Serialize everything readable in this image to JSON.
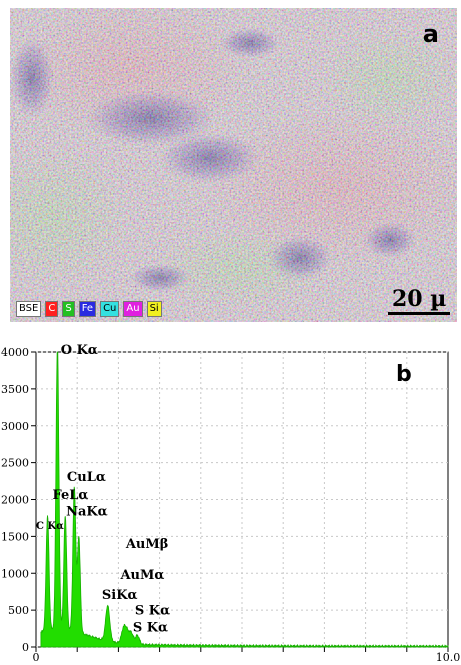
{
  "panel_a": {
    "label": "a",
    "scale_text": "20 µ",
    "legend": [
      {
        "label": "BSE",
        "bg": "#ffffff",
        "fg": "#000000"
      },
      {
        "label": "C",
        "bg": "#ff2020",
        "fg": "#ffffff"
      },
      {
        "label": "S",
        "bg": "#22c022",
        "fg": "#ffffff"
      },
      {
        "label": "Fe",
        "bg": "#2a2ae0",
        "fg": "#ffffff"
      },
      {
        "label": "Cu",
        "bg": "#33e0e0",
        "fg": "#000000"
      },
      {
        "label": "Au",
        "bg": "#e020e0",
        "fg": "#ffffff"
      },
      {
        "label": "Si",
        "bg": "#f0f020",
        "fg": "#000000"
      }
    ]
  },
  "panel_b": {
    "label": "b"
  },
  "chart_data": {
    "type": "area",
    "color": "#22dd00",
    "xlim": [
      0,
      10
    ],
    "ylim": [
      0,
      4000
    ],
    "x_tick_labels": [
      "0",
      "10.0"
    ],
    "y_ticks": [
      0,
      500,
      1000,
      1500,
      2000,
      2500,
      3000,
      3500,
      4000
    ],
    "y_tick_labels": [
      "0",
      "500",
      "1000",
      "1500",
      "2000",
      "2500",
      "3000",
      "3500",
      "4000"
    ],
    "grid": true,
    "peaks": [
      {
        "label": "C Kα",
        "x": 0.28,
        "y": 1560
      },
      {
        "label": "O Kα",
        "x": 0.52,
        "y": 3850
      },
      {
        "label": "FeLα",
        "x": 0.71,
        "y": 1550
      },
      {
        "label": "CuLα",
        "x": 0.93,
        "y": 1950
      },
      {
        "label": "NaKα",
        "x": 1.04,
        "y": 1300
      },
      {
        "label": "SiKα",
        "x": 1.74,
        "y": 480
      },
      {
        "label": "AuMα",
        "x": 2.12,
        "y": 180
      },
      {
        "label": "AuMβ",
        "x": 2.2,
        "y": 160
      },
      {
        "label": "S Kα",
        "x": 2.31,
        "y": 150
      },
      {
        "label": "S Kα",
        "x": 2.46,
        "y": 120
      }
    ],
    "peak_labels": [
      {
        "text": "O Kα",
        "x": 0.6,
        "y": 3970
      },
      {
        "text": "CuLα",
        "x": 0.75,
        "y": 2250
      },
      {
        "text": "FeLα",
        "x": 0.4,
        "y": 2010
      },
      {
        "text": "NaKα",
        "x": 0.73,
        "y": 1780
      },
      {
        "text": "C Kα",
        "x": 0.0,
        "y": 1600
      },
      {
        "text": "AuMβ",
        "x": 2.18,
        "y": 1340
      },
      {
        "text": "AuMα",
        "x": 2.05,
        "y": 920
      },
      {
        "text": "SiKα",
        "x": 1.6,
        "y": 650
      },
      {
        "text": "S Kα",
        "x": 2.4,
        "y": 440
      },
      {
        "text": "S Kα",
        "x": 2.35,
        "y": 210
      }
    ]
  }
}
